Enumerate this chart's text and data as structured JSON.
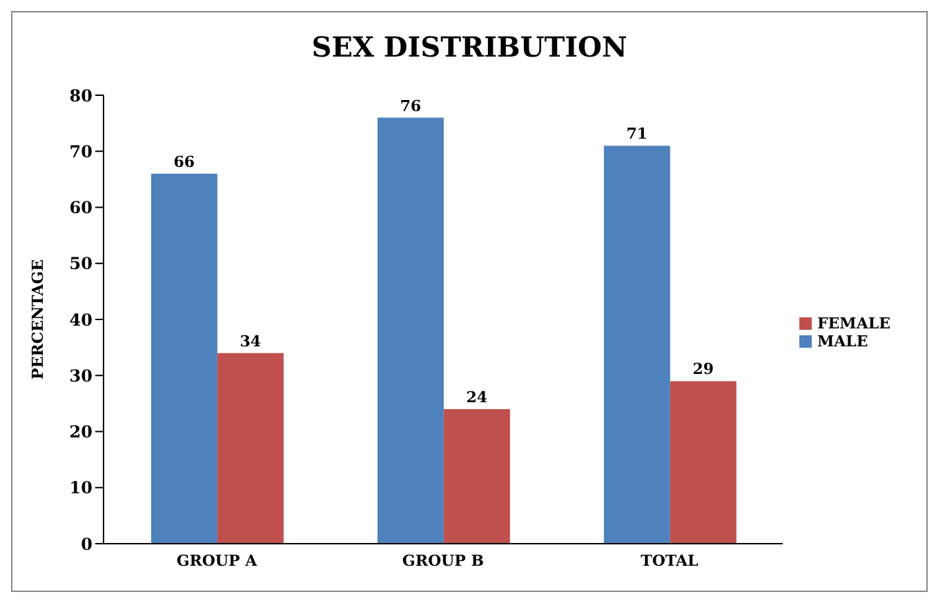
{
  "chart_data": {
    "type": "bar",
    "title": "SEX DISTRIBUTION",
    "ylabel": "PERCENTAGE",
    "categories": [
      "GROUP A",
      "GROUP B",
      "TOTAL"
    ],
    "series": [
      {
        "name": "MALE",
        "color": "#4f81bd",
        "values": [
          66,
          76,
          71
        ]
      },
      {
        "name": "FEMALE",
        "color": "#c0504d",
        "values": [
          34,
          24,
          29
        ]
      }
    ],
    "ylim": [
      0,
      80
    ],
    "yticks": [
      0,
      10,
      20,
      30,
      40,
      50,
      60,
      70,
      80
    ],
    "grid": false,
    "legend": "right",
    "data_labels": true
  }
}
